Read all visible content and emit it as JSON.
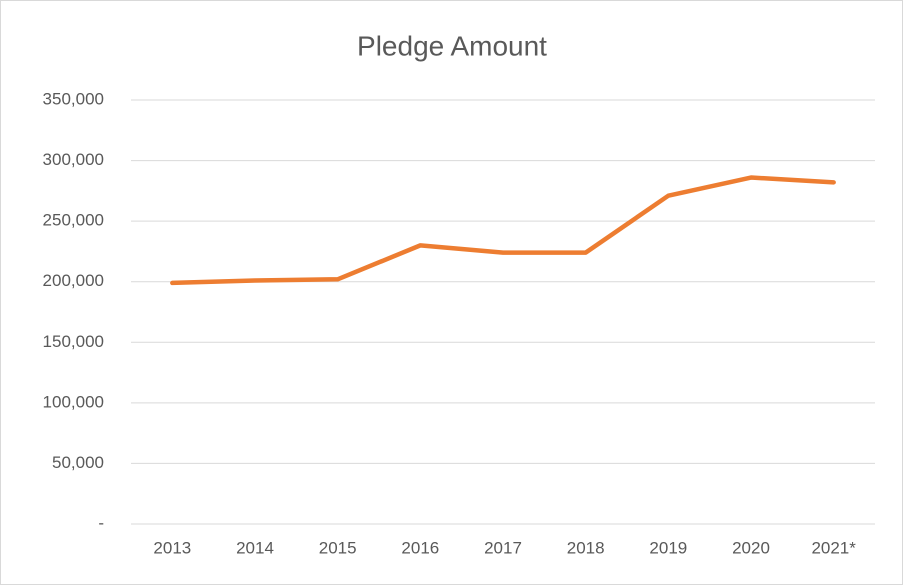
{
  "chart_data": {
    "type": "line",
    "title": "Pledge Amount",
    "categories": [
      "2013",
      "2014",
      "2015",
      "2016",
      "2017",
      "2018",
      "2019",
      "2020",
      "2021*"
    ],
    "series": [
      {
        "color": "#ed7d31",
        "values": [
          199000,
          201000,
          202000,
          230000,
          224000,
          224000,
          271000,
          286000,
          282000
        ]
      }
    ],
    "ylim": [
      0,
      350000
    ],
    "yticks": [
      {
        "value": 0,
        "label": "-"
      },
      {
        "value": 50000,
        "label": "50,000"
      },
      {
        "value": 100000,
        "label": "100,000"
      },
      {
        "value": 150000,
        "label": "150,000"
      },
      {
        "value": 200000,
        "label": "200,000"
      },
      {
        "value": 250000,
        "label": "250,000"
      },
      {
        "value": 300000,
        "label": "300,000"
      },
      {
        "value": 350000,
        "label": "350,000"
      }
    ],
    "grid": true
  }
}
